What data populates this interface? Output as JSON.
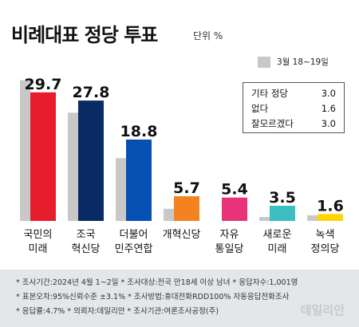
{
  "title": "비례대표 정당 투표",
  "unit": "단위 %",
  "legend": {
    "label": "3월 18~19일"
  },
  "others": [
    {
      "label": "기타 정당",
      "value": "3.0"
    },
    {
      "label": "없다",
      "value": "1.6"
    },
    {
      "label": "잘모르겠다",
      "value": "3.0"
    }
  ],
  "chart_data": {
    "type": "bar",
    "categories": [
      [
        "국민의",
        "미래"
      ],
      [
        "조국",
        "혁신당"
      ],
      [
        "더불어",
        "민주연합"
      ],
      [
        "개혁신당"
      ],
      [
        "자유",
        "통일당"
      ],
      [
        "새로운",
        "미래"
      ],
      [
        "녹색",
        "정의당"
      ]
    ],
    "series": [
      {
        "name": "3월 18~19일",
        "values": [
          32.5,
          25.0,
          14.5,
          2.8,
          0,
          0.9,
          1.3
        ],
        "color": "#c8c8c8"
      },
      {
        "name": "",
        "values": [
          29.7,
          27.8,
          18.8,
          5.7,
          5.4,
          3.5,
          1.6
        ],
        "colors": [
          "#e61e2b",
          "#0a2a66",
          "#0650b4",
          "#f58220",
          "#e8327a",
          "#3cbfc2",
          "#ffd400"
        ]
      }
    ],
    "data_labels": [
      "29.7",
      "27.8",
      "18.8",
      "5.7",
      "5.4",
      "3.5",
      "1.6"
    ],
    "ylim": [
      0,
      35
    ]
  },
  "footer": {
    "lines": [
      "* 조사기간:2024년 4월 1~2일  * 조사대상:전국 만18세 이상 남녀  * 응답자수:1,001명",
      "* 표본오차:95%신뢰수준 ±3.1%  * 조사방법:휴대전화RDD100% 자동응답전화조사",
      "* 응답률:4.7%  * 의뢰자:데일리안  * 조사기관:여론조사공정(주)"
    ],
    "watermark": "데일리안"
  }
}
